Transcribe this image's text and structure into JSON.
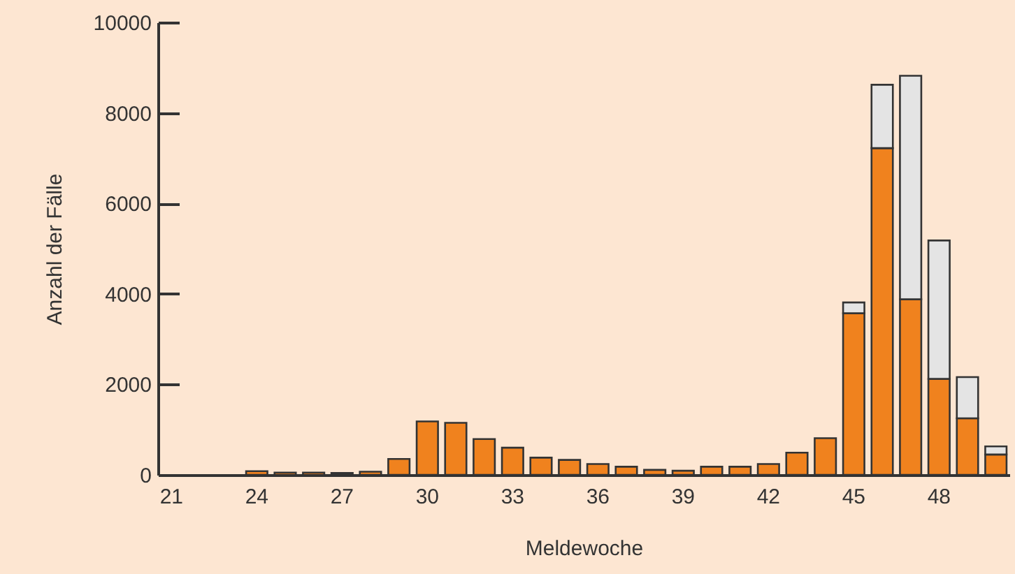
{
  "chart_data": {
    "type": "bar",
    "xlabel": "Meldewoche",
    "ylabel": "Anzahl der Fälle",
    "stacked": true,
    "categories": [
      "21",
      null,
      null,
      "24",
      null,
      null,
      "27",
      null,
      null,
      "30",
      null,
      null,
      "33",
      null,
      null,
      "36",
      null,
      null,
      "39",
      null,
      null,
      "42",
      null,
      null,
      "45",
      null,
      null,
      "48",
      null,
      null
    ],
    "series": [
      {
        "color": "#f0821e",
        "values": [
          null,
          null,
          null,
          80,
          50,
          50,
          40,
          70,
          350,
          1180,
          1150,
          790,
          600,
          380,
          330,
          240,
          180,
          110,
          90,
          180,
          180,
          240,
          490,
          810,
          3570,
          7220,
          3880,
          2120,
          1250,
          450
        ]
      },
      {
        "color": "#e4e4e4",
        "values": [
          null,
          null,
          null,
          null,
          null,
          null,
          null,
          null,
          null,
          null,
          null,
          null,
          null,
          null,
          null,
          null,
          null,
          null,
          null,
          null,
          null,
          null,
          null,
          null,
          240,
          1400,
          4940,
          3060,
          910,
          180
        ]
      }
    ],
    "ylim": [
      0,
      10000
    ],
    "yticks": [
      0,
      2000,
      4000,
      6000,
      8000,
      10000
    ],
    "grid": false
  }
}
